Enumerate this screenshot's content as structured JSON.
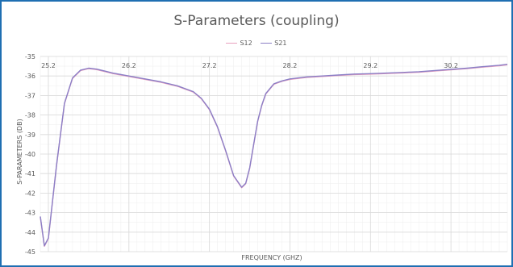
{
  "chart_data": {
    "type": "line",
    "title": "S-Parameters (coupling)",
    "xlabel": "FREQUENCY (GHZ)",
    "ylabel": "S-PARAMETERS (DB)",
    "xlim": [
      25.1,
      30.9
    ],
    "ylim": [
      -45,
      -35
    ],
    "xticks": [
      25.2,
      26.2,
      27.2,
      28.2,
      29.2,
      30.2
    ],
    "yticks": [
      -35,
      -36,
      -37,
      -38,
      -39,
      -40,
      -41,
      -42,
      -43,
      -44,
      -45
    ],
    "grid": true,
    "legend": "top",
    "series": [
      {
        "name": "S12",
        "color": "#e8a0bf",
        "x": [
          25.1,
          25.15,
          25.2,
          25.3,
          25.4,
          25.5,
          25.6,
          25.7,
          25.8,
          25.9,
          26.0,
          26.2,
          26.4,
          26.6,
          26.8,
          27.0,
          27.1,
          27.2,
          27.3,
          27.4,
          27.5,
          27.6,
          27.65,
          27.7,
          27.75,
          27.8,
          27.85,
          27.9,
          28.0,
          28.1,
          28.2,
          28.4,
          28.6,
          28.8,
          29.0,
          29.2,
          29.4,
          29.6,
          29.8,
          30.0,
          30.2,
          30.4,
          30.6,
          30.8,
          30.9
        ],
        "y": [
          -43.2,
          -44.7,
          -44.3,
          -40.6,
          -37.4,
          -36.1,
          -35.7,
          -35.6,
          -35.65,
          -35.75,
          -35.85,
          -36.0,
          -36.15,
          -36.3,
          -36.5,
          -36.8,
          -37.15,
          -37.7,
          -38.6,
          -39.8,
          -41.1,
          -41.7,
          -41.5,
          -40.7,
          -39.5,
          -38.3,
          -37.5,
          -36.9,
          -36.4,
          -36.25,
          -36.15,
          -36.05,
          -36.0,
          -35.95,
          -35.9,
          -35.88,
          -35.85,
          -35.82,
          -35.78,
          -35.72,
          -35.66,
          -35.6,
          -35.52,
          -35.45,
          -35.4
        ]
      },
      {
        "name": "S21",
        "color": "#8b7fc6",
        "x": [
          25.1,
          25.15,
          25.2,
          25.3,
          25.4,
          25.5,
          25.6,
          25.7,
          25.8,
          25.9,
          26.0,
          26.2,
          26.4,
          26.6,
          26.8,
          27.0,
          27.1,
          27.2,
          27.3,
          27.4,
          27.5,
          27.6,
          27.65,
          27.7,
          27.75,
          27.8,
          27.85,
          27.9,
          28.0,
          28.1,
          28.2,
          28.4,
          28.6,
          28.8,
          29.0,
          29.2,
          29.4,
          29.6,
          29.8,
          30.0,
          30.2,
          30.4,
          30.6,
          30.8,
          30.9
        ],
        "y": [
          -43.2,
          -44.7,
          -44.3,
          -40.6,
          -37.4,
          -36.1,
          -35.7,
          -35.6,
          -35.65,
          -35.75,
          -35.85,
          -36.0,
          -36.15,
          -36.3,
          -36.5,
          -36.8,
          -37.15,
          -37.7,
          -38.6,
          -39.8,
          -41.1,
          -41.7,
          -41.5,
          -40.7,
          -39.5,
          -38.3,
          -37.5,
          -36.9,
          -36.4,
          -36.25,
          -36.15,
          -36.05,
          -36.0,
          -35.95,
          -35.9,
          -35.88,
          -35.85,
          -35.82,
          -35.78,
          -35.72,
          -35.66,
          -35.6,
          -35.52,
          -35.45,
          -35.4
        ]
      }
    ]
  }
}
